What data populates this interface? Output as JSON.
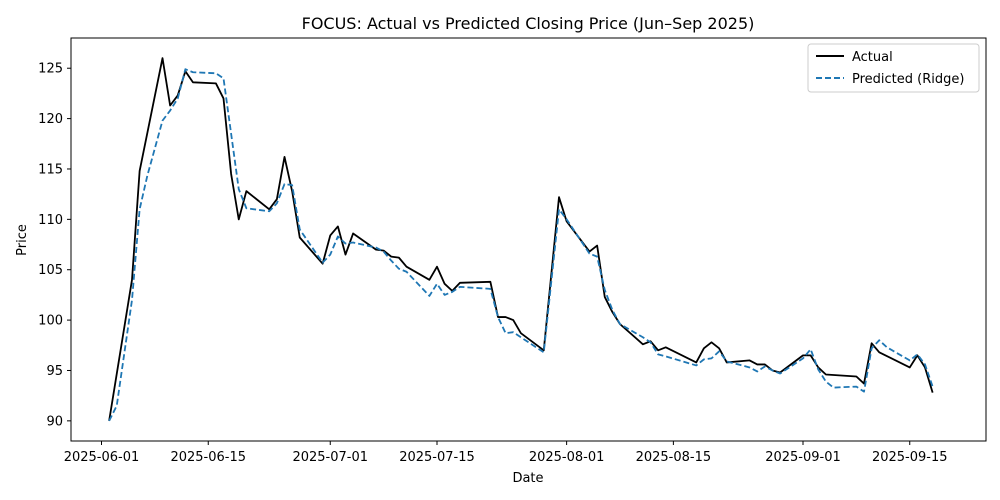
{
  "chart_data": {
    "type": "line",
    "title": "FOCUS: Actual vs Predicted Closing Price (Jun–Sep 2025)",
    "xlabel": "Date",
    "ylabel": "Price",
    "xlim": [
      "2025-05-28",
      "2025-09-25"
    ],
    "ylim": [
      88,
      128
    ],
    "x_ticks": [
      "2025-06-01",
      "2025-06-15",
      "2025-07-01",
      "2025-07-15",
      "2025-08-01",
      "2025-08-15",
      "2025-09-01",
      "2025-09-15"
    ],
    "y_ticks": [
      90,
      95,
      100,
      105,
      110,
      115,
      120,
      125
    ],
    "legend_position": "top-right",
    "series": [
      {
        "name": "Actual",
        "color": "#000000",
        "style": "solid",
        "points": [
          [
            "2025-06-02",
            90.0
          ],
          [
            "2025-06-05",
            104.0
          ],
          [
            "2025-06-06",
            114.8
          ],
          [
            "2025-06-09",
            126.0
          ],
          [
            "2025-06-10",
            121.3
          ],
          [
            "2025-06-11",
            122.3
          ],
          [
            "2025-06-12",
            124.7
          ],
          [
            "2025-06-13",
            123.6
          ],
          [
            "2025-06-16",
            123.5
          ],
          [
            "2025-06-17",
            122.0
          ],
          [
            "2025-06-18",
            114.5
          ],
          [
            "2025-06-19",
            110.0
          ],
          [
            "2025-06-20",
            112.8
          ],
          [
            "2025-06-23",
            111.0
          ],
          [
            "2025-06-24",
            112.0
          ],
          [
            "2025-06-25",
            116.2
          ],
          [
            "2025-06-26",
            112.8
          ],
          [
            "2025-06-27",
            108.2
          ],
          [
            "2025-06-30",
            105.6
          ],
          [
            "2025-07-01",
            108.4
          ],
          [
            "2025-07-02",
            109.3
          ],
          [
            "2025-07-03",
            106.5
          ],
          [
            "2025-07-04",
            108.6
          ],
          [
            "2025-07-07",
            107.0
          ],
          [
            "2025-07-08",
            106.9
          ],
          [
            "2025-07-09",
            106.3
          ],
          [
            "2025-07-10",
            106.2
          ],
          [
            "2025-07-11",
            105.3
          ],
          [
            "2025-07-14",
            104.0
          ],
          [
            "2025-07-15",
            105.3
          ],
          [
            "2025-07-16",
            103.6
          ],
          [
            "2025-07-17",
            102.9
          ],
          [
            "2025-07-18",
            103.7
          ],
          [
            "2025-07-22",
            103.8
          ],
          [
            "2025-07-23",
            100.3
          ],
          [
            "2025-07-24",
            100.3
          ],
          [
            "2025-07-25",
            100.0
          ],
          [
            "2025-07-26",
            98.7
          ],
          [
            "2025-07-29",
            97.0
          ],
          [
            "2025-07-31",
            112.2
          ],
          [
            "2025-08-01",
            109.8
          ],
          [
            "2025-08-04",
            106.8
          ],
          [
            "2025-08-05",
            107.4
          ],
          [
            "2025-08-06",
            102.3
          ],
          [
            "2025-08-07",
            100.8
          ],
          [
            "2025-08-08",
            99.6
          ],
          [
            "2025-08-11",
            97.6
          ],
          [
            "2025-08-12",
            97.9
          ],
          [
            "2025-08-13",
            97.0
          ],
          [
            "2025-08-14",
            97.3
          ],
          [
            "2025-08-18",
            95.8
          ],
          [
            "2025-08-19",
            97.2
          ],
          [
            "2025-08-20",
            97.8
          ],
          [
            "2025-08-21",
            97.2
          ],
          [
            "2025-08-22",
            95.8
          ],
          [
            "2025-08-25",
            96.0
          ],
          [
            "2025-08-26",
            95.6
          ],
          [
            "2025-08-27",
            95.6
          ],
          [
            "2025-08-28",
            95.0
          ],
          [
            "2025-08-29",
            94.8
          ],
          [
            "2025-09-01",
            96.5
          ],
          [
            "2025-09-02",
            96.5
          ],
          [
            "2025-09-03",
            95.3
          ],
          [
            "2025-09-04",
            94.6
          ],
          [
            "2025-09-08",
            94.4
          ],
          [
            "2025-09-09",
            93.7
          ],
          [
            "2025-09-10",
            97.7
          ],
          [
            "2025-09-11",
            96.8
          ],
          [
            "2025-09-15",
            95.3
          ],
          [
            "2025-09-16",
            96.5
          ],
          [
            "2025-09-17",
            95.3
          ],
          [
            "2025-09-18",
            92.8
          ]
        ]
      },
      {
        "name": "Predicted (Ridge)",
        "color": "#1f77b4",
        "style": "dashed",
        "points": [
          [
            "2025-06-02",
            90.0
          ],
          [
            "2025-06-03",
            91.5
          ],
          [
            "2025-06-05",
            102.0
          ],
          [
            "2025-06-06",
            111.0
          ],
          [
            "2025-06-07",
            114.3
          ],
          [
            "2025-06-09",
            119.8
          ],
          [
            "2025-06-10",
            120.8
          ],
          [
            "2025-06-11",
            122.0
          ],
          [
            "2025-06-12",
            124.9
          ],
          [
            "2025-06-13",
            124.6
          ],
          [
            "2025-06-16",
            124.5
          ],
          [
            "2025-06-17",
            124.0
          ],
          [
            "2025-06-18",
            118.5
          ],
          [
            "2025-06-19",
            113.0
          ],
          [
            "2025-06-20",
            111.1
          ],
          [
            "2025-06-23",
            110.8
          ],
          [
            "2025-06-24",
            111.6
          ],
          [
            "2025-06-25",
            113.5
          ],
          [
            "2025-06-26",
            113.4
          ],
          [
            "2025-06-27",
            109.0
          ],
          [
            "2025-06-30",
            105.7
          ],
          [
            "2025-07-01",
            106.5
          ],
          [
            "2025-07-02",
            108.3
          ],
          [
            "2025-07-03",
            107.6
          ],
          [
            "2025-07-04",
            107.7
          ],
          [
            "2025-07-07",
            107.2
          ],
          [
            "2025-07-08",
            106.8
          ],
          [
            "2025-07-09",
            105.9
          ],
          [
            "2025-07-10",
            105.1
          ],
          [
            "2025-07-11",
            104.8
          ],
          [
            "2025-07-14",
            102.4
          ],
          [
            "2025-07-15",
            103.6
          ],
          [
            "2025-07-16",
            102.5
          ],
          [
            "2025-07-17",
            102.8
          ],
          [
            "2025-07-18",
            103.3
          ],
          [
            "2025-07-22",
            103.1
          ],
          [
            "2025-07-23",
            100.3
          ],
          [
            "2025-07-24",
            98.7
          ],
          [
            "2025-07-25",
            98.8
          ],
          [
            "2025-07-26",
            98.3
          ],
          [
            "2025-07-29",
            96.8
          ],
          [
            "2025-07-31",
            111.0
          ],
          [
            "2025-08-01",
            110.0
          ],
          [
            "2025-08-04",
            106.6
          ],
          [
            "2025-08-05",
            106.3
          ],
          [
            "2025-08-06",
            103.0
          ],
          [
            "2025-08-07",
            101.0
          ],
          [
            "2025-08-08",
            99.6
          ],
          [
            "2025-08-11",
            98.3
          ],
          [
            "2025-08-12",
            97.8
          ],
          [
            "2025-08-13",
            96.6
          ],
          [
            "2025-08-14",
            96.4
          ],
          [
            "2025-08-18",
            95.5
          ],
          [
            "2025-08-19",
            96.1
          ],
          [
            "2025-08-20",
            96.2
          ],
          [
            "2025-08-21",
            96.9
          ],
          [
            "2025-08-22",
            95.9
          ],
          [
            "2025-08-25",
            95.3
          ],
          [
            "2025-08-26",
            94.9
          ],
          [
            "2025-08-27",
            95.4
          ],
          [
            "2025-08-28",
            95.0
          ],
          [
            "2025-08-29",
            94.7
          ],
          [
            "2025-09-01",
            96.2
          ],
          [
            "2025-09-02",
            97.1
          ],
          [
            "2025-09-03",
            95.1
          ],
          [
            "2025-09-04",
            93.9
          ],
          [
            "2025-09-05",
            93.3
          ],
          [
            "2025-09-08",
            93.4
          ],
          [
            "2025-09-09",
            92.9
          ],
          [
            "2025-09-10",
            97.2
          ],
          [
            "2025-09-11",
            98.0
          ],
          [
            "2025-09-12",
            97.3
          ],
          [
            "2025-09-15",
            96.0
          ],
          [
            "2025-09-16",
            96.6
          ],
          [
            "2025-09-17",
            95.6
          ],
          [
            "2025-09-18",
            93.4
          ]
        ]
      }
    ]
  }
}
